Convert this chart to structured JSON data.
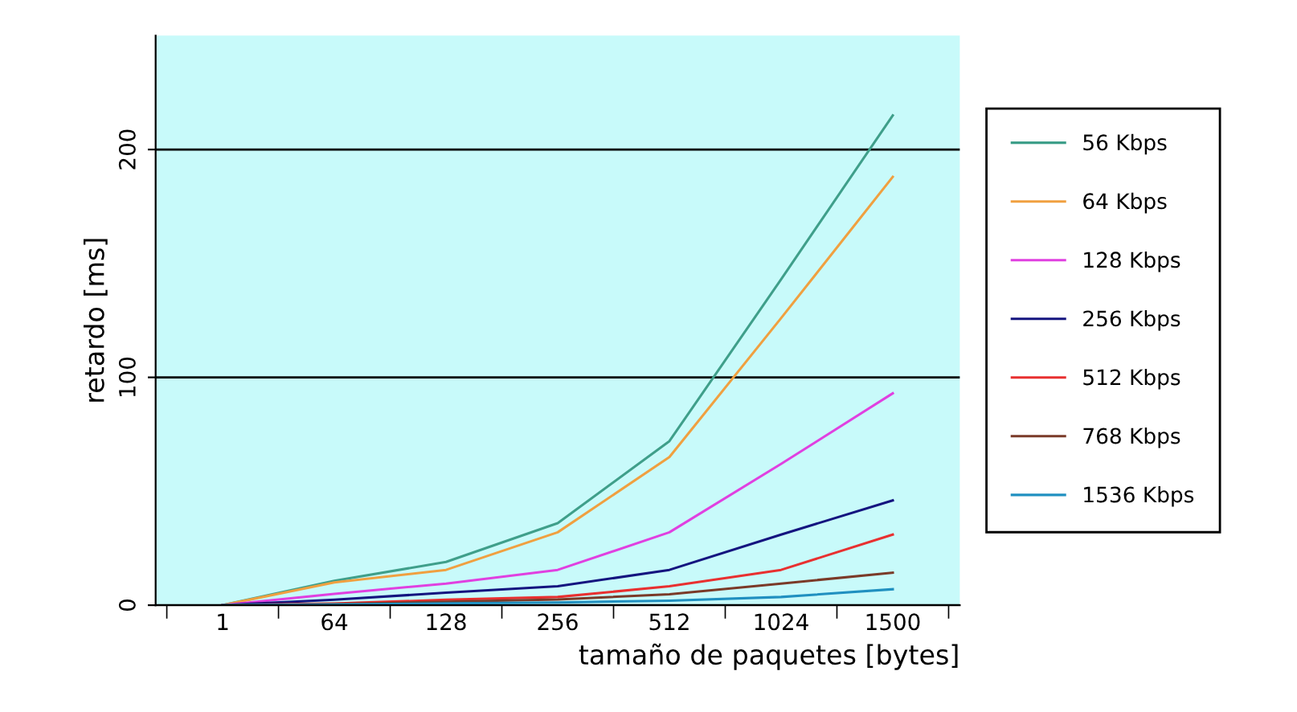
{
  "chart_data": {
    "type": "line",
    "xlabel": "tamaño de paquetes [bytes]",
    "ylabel": "retardo [ms]",
    "categories": [
      "1",
      "64",
      "128",
      "256",
      "512",
      "1024",
      "1500"
    ],
    "series": [
      {
        "name": "56 Kbps",
        "color": "#3f9f8a",
        "values": [
          0,
          10.7,
          19,
          36,
          72,
          143,
          215
        ]
      },
      {
        "name": "64 Kbps",
        "color": "#f0a040",
        "values": [
          0,
          10,
          15.5,
          32,
          65,
          126,
          188
        ]
      },
      {
        "name": "128 Kbps",
        "color": "#e040e0",
        "values": [
          0,
          5,
          9.5,
          15.5,
          32,
          62,
          93
        ]
      },
      {
        "name": "256 Kbps",
        "color": "#14147f",
        "values": [
          0,
          2.4,
          5.5,
          8.3,
          15.5,
          31,
          46
        ]
      },
      {
        "name": "512 Kbps",
        "color": "#e83030",
        "values": [
          0,
          0.7,
          2.4,
          3.6,
          8.3,
          15.5,
          31
        ]
      },
      {
        "name": "768 Kbps",
        "color": "#7a3a28",
        "values": [
          0,
          0.5,
          1.5,
          2.5,
          4.8,
          9.5,
          14.3
        ]
      },
      {
        "name": "1536 Kbps",
        "color": "#2090c0",
        "values": [
          0,
          0.3,
          0.8,
          1.2,
          2,
          3.6,
          7
        ]
      }
    ],
    "ylim": [
      0,
      250
    ],
    "yticks": [
      0,
      100,
      200
    ],
    "grid": "y",
    "legend": "right",
    "marker": "none",
    "line_style": "solid"
  }
}
